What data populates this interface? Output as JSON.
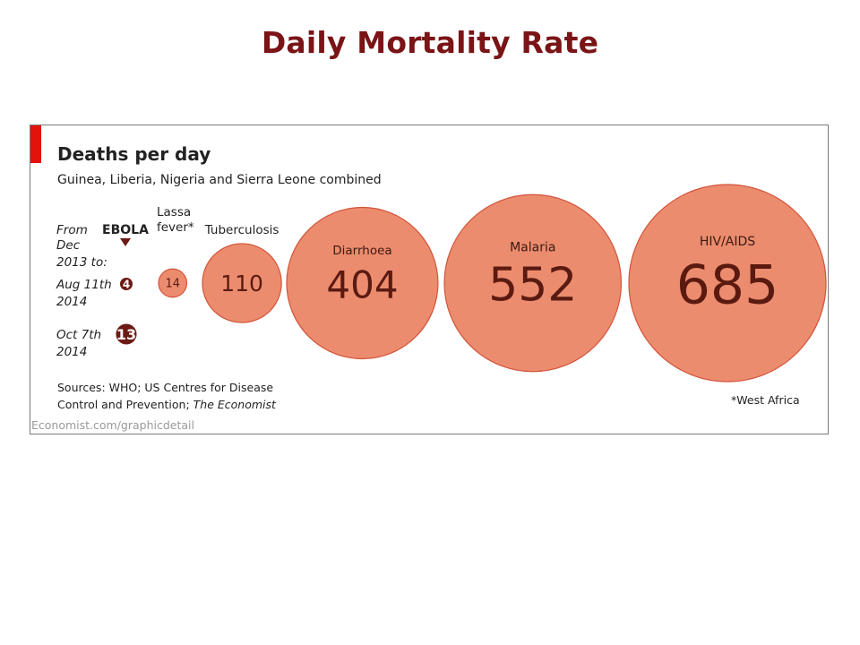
{
  "slide": {
    "title": "Daily Mortality Rate"
  },
  "colors": {
    "bubble": "#ec8c6e",
    "bubble_stroke": "#d2543a",
    "ebola_badge": "#6b1a14",
    "accent": "#e3120b"
  },
  "chart_data": {
    "type": "bubble",
    "title": "Deaths per day",
    "subtitle": "Guinea, Liberia, Nigeria and Sierra Leone combined",
    "unit": "Deaths per day",
    "ebola": {
      "label": "EBOLA",
      "from_label": [
        "From",
        "Dec",
        "2013 to:"
      ],
      "points": [
        {
          "date": [
            "Aug 11th",
            "2014"
          ],
          "value": 4
        },
        {
          "date": [
            "Oct 7th",
            "2014"
          ],
          "value": 13
        }
      ]
    },
    "categories": [
      "Lassa fever*",
      "Tuberculosis",
      "Diarrhoea",
      "Malaria",
      "HIV/AIDS"
    ],
    "values": [
      14,
      110,
      404,
      552,
      685
    ],
    "lassa_label": [
      "Lassa",
      "fever*"
    ],
    "footnote": "*West Africa",
    "sources_line1": "Sources: WHO; US Centres for Disease",
    "sources_line2a": "Control and Prevention; ",
    "sources_line2b": "The Economist",
    "credit": "Economist.com/graphicdetail"
  }
}
